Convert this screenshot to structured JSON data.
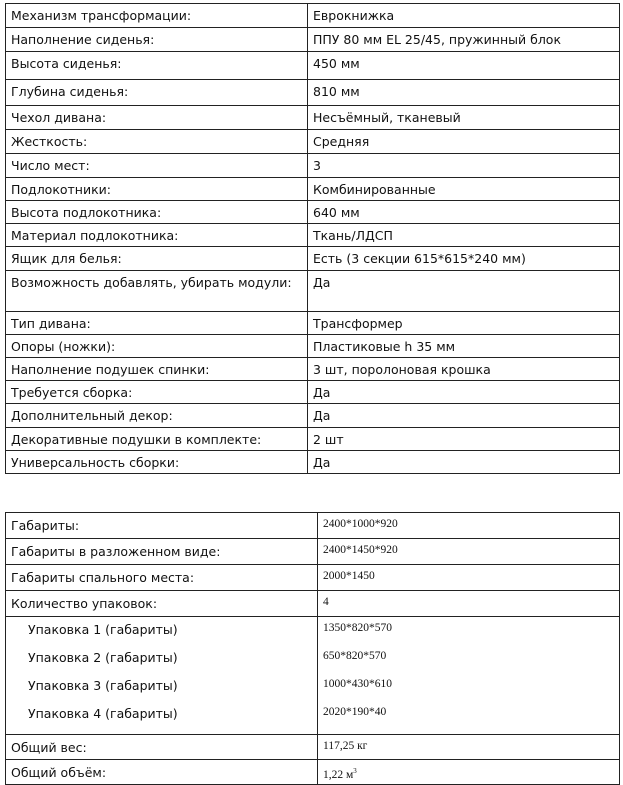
{
  "specs": [
    {
      "label": "Механизм трансформации:",
      "value": "Еврокнижка"
    },
    {
      "label": "Наполнение сиденья:",
      "value": "ППУ 80 мм EL 25/45, пружинный блок"
    },
    {
      "label": "Высота сиденья:",
      "value": "450 мм"
    },
    {
      "label": "Глубина сиденья:",
      "value": "810 мм"
    },
    {
      "label": "Чехол дивана:",
      "value": "Несъёмный, тканевый"
    },
    {
      "label": "Жесткость:",
      "value": "Средняя"
    },
    {
      "label": "Число мест:",
      "value": "3"
    },
    {
      "label": "Подлокотники:",
      "value": "Комбинированные"
    },
    {
      "label": "Высота подлокотника:",
      "value": "640 мм"
    },
    {
      "label": "Материал подлокотника:",
      "value": "Ткань/ЛДСП"
    },
    {
      "label": "Ящик для белья:",
      "value": "Есть (3 секции 615*615*240 мм)"
    },
    {
      "label": "Возможность добавлять, убирать модули:",
      "value": "Да"
    },
    {
      "label": "Тип дивана:",
      "value": "Трансформер"
    },
    {
      "label": "Опоры (ножки):",
      "value": "Пластиковые h 35 мм"
    },
    {
      "label": "Наполнение подушек спинки:",
      "value": "3 шт, поролоновая крошка"
    },
    {
      "label": "Требуется сборка:",
      "value": "Да"
    },
    {
      "label": "Дополнительный декор:",
      "value": "Да"
    },
    {
      "label": "Декоративные подушки в комплекте:",
      "value": "2 шт"
    },
    {
      "label": "Универсальность сборки:",
      "value": "Да"
    }
  ],
  "dimensions": {
    "rows": [
      {
        "label": "Габариты:",
        "value": "2400*1000*920"
      },
      {
        "label": "Габариты в разложенном виде:",
        "value": "2400*1450*920"
      },
      {
        "label": "Габариты спального места:",
        "value": "2000*1450"
      },
      {
        "label": "Количество упаковок:",
        "value": "4"
      }
    ],
    "packages": [
      {
        "label": "Упаковка 1 (габариты)",
        "value": "1350*820*570"
      },
      {
        "label": "Упаковка 2 (габариты)",
        "value": "650*820*570"
      },
      {
        "label": "Упаковка 3 (габариты)",
        "value": "1000*430*610"
      },
      {
        "label": "Упаковка 4 (габариты)",
        "value": "2020*190*40"
      }
    ],
    "weight": {
      "label": "Общий вес:",
      "value": "117,25 кг"
    },
    "volume": {
      "label": "Общий объём:",
      "value": "1,22 м",
      "unit_sup": "3"
    }
  }
}
